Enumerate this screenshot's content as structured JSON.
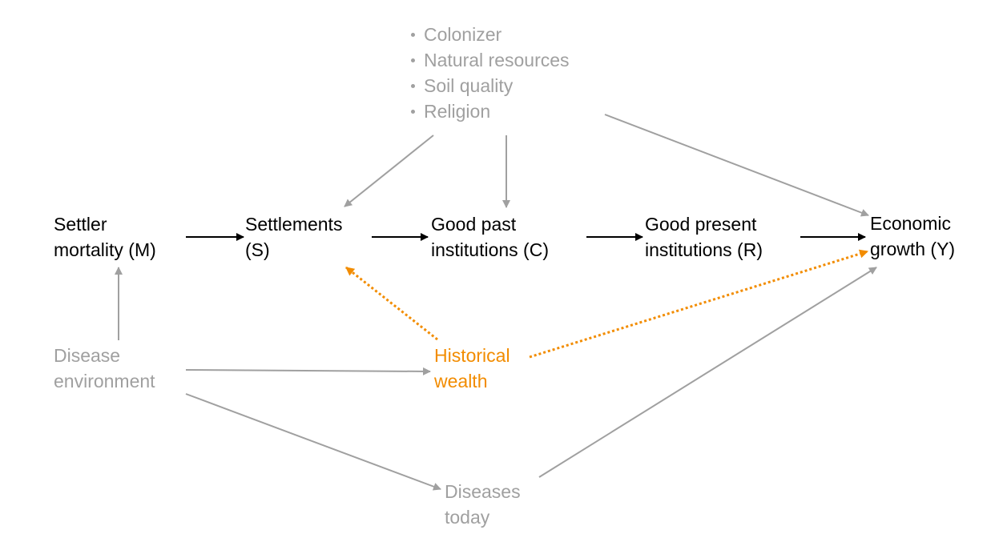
{
  "colors": {
    "main": "#000000",
    "confounder": "#a0a0a0",
    "highlight": "#f28c00"
  },
  "confounders": {
    "items": [
      "Colonizer",
      "Natural resources",
      "Soil quality",
      "Religion"
    ]
  },
  "nodes": {
    "settler_mortality": {
      "line1": "Settler",
      "line2": "mortality (M)"
    },
    "settlements": {
      "line1": "Settlements",
      "line2": "(S)"
    },
    "past_institutions": {
      "line1": "Good past",
      "line2": "institutions (C)"
    },
    "present_institutions": {
      "line1": "Good present",
      "line2": "institutions (R)"
    },
    "economic_growth": {
      "line1": "Economic",
      "line2": "growth (Y)"
    },
    "disease_environment": {
      "line1": "Disease",
      "line2": "environment"
    },
    "historical_wealth": {
      "line1": "Historical",
      "line2": "wealth"
    },
    "diseases_today": {
      "line1": "Diseases",
      "line2": "today"
    }
  },
  "edges": [
    {
      "from": "settler_mortality",
      "to": "settlements",
      "style": "main"
    },
    {
      "from": "settlements",
      "to": "past_institutions",
      "style": "main"
    },
    {
      "from": "past_institutions",
      "to": "present_institutions",
      "style": "main"
    },
    {
      "from": "present_institutions",
      "to": "economic_growth",
      "style": "main"
    },
    {
      "from": "confounders",
      "to": "settlements",
      "style": "confounder"
    },
    {
      "from": "confounders",
      "to": "past_institutions",
      "style": "confounder"
    },
    {
      "from": "confounders",
      "to": "economic_growth",
      "style": "confounder"
    },
    {
      "from": "disease_environment",
      "to": "settler_mortality",
      "style": "confounder"
    },
    {
      "from": "disease_environment",
      "to": "historical_wealth",
      "style": "confounder"
    },
    {
      "from": "disease_environment",
      "to": "diseases_today",
      "style": "confounder"
    },
    {
      "from": "diseases_today",
      "to": "economic_growth",
      "style": "confounder"
    },
    {
      "from": "historical_wealth",
      "to": "settlements",
      "style": "highlight-dotted"
    },
    {
      "from": "historical_wealth",
      "to": "economic_growth",
      "style": "highlight-dotted"
    }
  ]
}
